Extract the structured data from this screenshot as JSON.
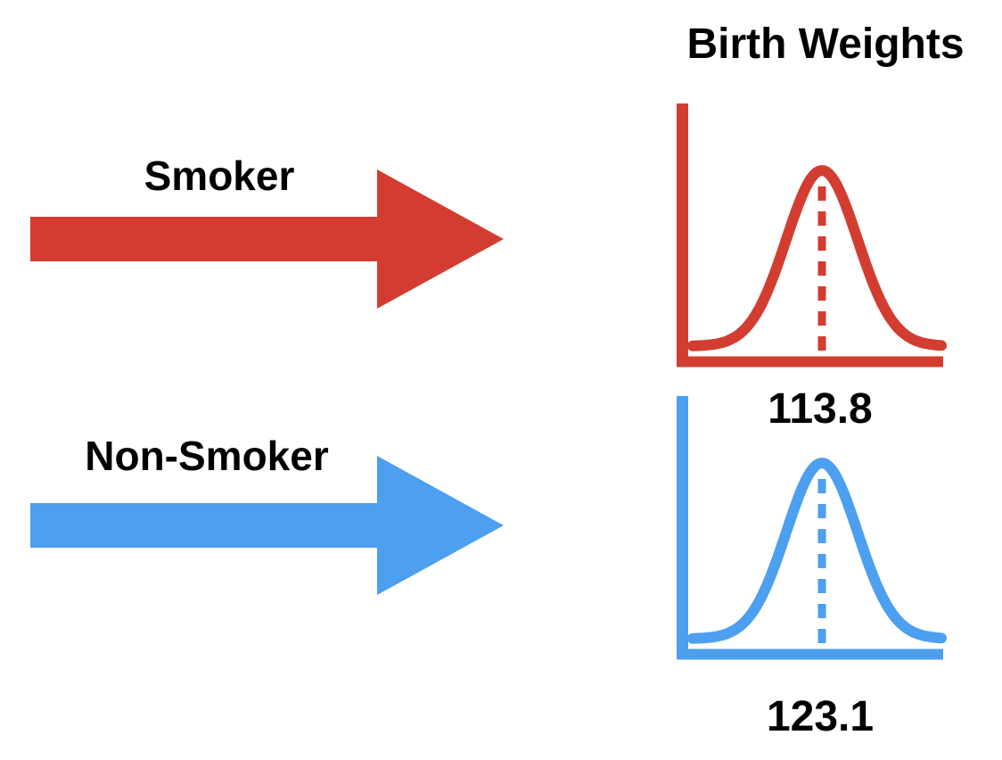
{
  "title": "Birth Weights",
  "colors": {
    "smoker": "#D33D31",
    "non_smoker": "#4D9FF0",
    "text": "#000000",
    "background": "#FFFFFF"
  },
  "groups": [
    {
      "label": "Smoker",
      "mean": "113.8"
    },
    {
      "label": "Non-Smoker",
      "mean": "123.1"
    }
  ],
  "chart_data": {
    "type": "line",
    "title": "Birth Weights",
    "series": [
      {
        "name": "Smoker",
        "shape": "normal-distribution-curve",
        "mean": 113.8,
        "color": "#D33D31",
        "mean_marker": "dashed-vertical-line"
      },
      {
        "name": "Non-Smoker",
        "shape": "normal-distribution-curve",
        "mean": 123.1,
        "color": "#4D9FF0",
        "mean_marker": "dashed-vertical-line"
      }
    ],
    "axes": "unlabeled L-shaped axes, one per curve",
    "legend_position": "none",
    "grid": false
  }
}
